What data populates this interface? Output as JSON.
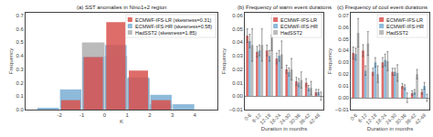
{
  "chart_data": [
    {
      "type": "histogram",
      "title": "(a) SST anomalies in Nino1+2 region",
      "xlabel": "K",
      "ylabel": "Frequency",
      "bins": [
        -3,
        -2,
        -1,
        0,
        1,
        2,
        3,
        4,
        5
      ],
      "series": [
        {
          "name": "ECMWF-IFS-LR (skewness=0.31)",
          "color": "#d9534f",
          "values": [
            0.0,
            0.07,
            0.39,
            0.65,
            0.29,
            0.07,
            0.0,
            0.0
          ]
        },
        {
          "name": "ECMWF-IFS-HR (skewness=0.58)",
          "color": "#7bafd4",
          "values": [
            0.01,
            0.15,
            0.39,
            0.48,
            0.24,
            0.11,
            0.04,
            0.0
          ]
        },
        {
          "name": "HadSST2 (skewness=1.85)",
          "color": "#b0b0b0",
          "values": [
            0.0,
            0.0,
            0.5,
            0.4,
            0.23,
            0.04,
            0.0,
            0.0
          ]
        }
      ],
      "xlim": [
        -3.5,
        5.0
      ],
      "xticks": [
        -2,
        -1,
        0,
        1,
        2,
        3,
        4
      ],
      "ylim": [
        0,
        0.72
      ],
      "yticks": [
        {
          "value": 0,
          "label": "0.0"
        },
        0.1,
        0.2,
        0.3,
        0.4,
        0.5,
        0.6,
        0.7
      ],
      "grid": false,
      "legend": "upper right"
    },
    {
      "type": "bar",
      "title": "(b) Frequency of warm event durations",
      "xlabel": "Duration in months",
      "ylabel": "Frequency",
      "categories": [
        "0-6",
        "6-12",
        "12-18",
        "18-24",
        "24-30",
        "30-36",
        "36-42",
        "42-48"
      ],
      "series": [
        {
          "name": "ECMWF-IFS-LR",
          "color": "#d9534f",
          "values": [
            0.045,
            0.033,
            0.034,
            0.028,
            0.02,
            0.011,
            0.01,
            0.003
          ],
          "errors": [
            0.005,
            0.004,
            0.004,
            0.004,
            0.003,
            0.003,
            0.003,
            0.002
          ]
        },
        {
          "name": "ECMWF-IFS-HR",
          "color": "#7bafd4",
          "values": [
            0.041,
            0.034,
            0.03,
            0.03,
            0.018,
            0.01,
            0.006,
            0.003
          ],
          "errors": [
            0.005,
            0.004,
            0.004,
            0.004,
            0.003,
            0.003,
            0.002,
            0.002
          ]
        },
        {
          "name": "HadSST2",
          "color": "#b0b0b0",
          "values": [
            0.038,
            0.038,
            0.046,
            0.031,
            0.02,
            0.012,
            0.006,
            0.0
          ],
          "errors": [
            0.012,
            0.012,
            0.012,
            0.01,
            0.008,
            0.006,
            0.005,
            0.003
          ]
        }
      ],
      "ylim": [
        -0.01,
        0.062
      ],
      "yticks": [
        {
          "value": -0.01,
          "label": "−0.01"
        },
        {
          "value": 0,
          "label": "0.00"
        },
        0.01,
        0.02,
        0.03,
        0.04,
        0.05,
        0.06
      ],
      "grid": false,
      "legend": "upper right"
    },
    {
      "type": "bar",
      "title": "(c) Frequency of cool event durations",
      "xlabel": "Duration in months",
      "ylabel": "Frequency",
      "categories": [
        "0-6",
        "6-12",
        "12-18",
        "18-24",
        "24-30",
        "30-36",
        "36-42",
        "42-48"
      ],
      "series": [
        {
          "name": "ECMWF-IFS-LR",
          "color": "#d9534f",
          "values": [
            0.038,
            0.04,
            0.022,
            0.03,
            0.022,
            0.01,
            0.004,
            0.005
          ],
          "errors": [
            0.005,
            0.005,
            0.003,
            0.004,
            0.003,
            0.002,
            0.002,
            0.002
          ]
        },
        {
          "name": "ECMWF-IFS-HR",
          "color": "#7bafd4",
          "values": [
            0.037,
            0.023,
            0.03,
            0.032,
            0.022,
            0.009,
            0.005,
            0.01
          ],
          "errors": [
            0.005,
            0.004,
            0.004,
            0.005,
            0.003,
            0.002,
            0.002,
            0.003
          ]
        },
        {
          "name": "HadSST2",
          "color": "#b0b0b0",
          "values": [
            0.055,
            0.046,
            0.02,
            0.031,
            0.021,
            0.0,
            0.02,
            0.0
          ],
          "errors": [
            0.012,
            0.01,
            0.007,
            0.008,
            0.007,
            0.004,
            0.004,
            0.003
          ]
        }
      ],
      "ylim": [
        -0.01,
        0.072
      ],
      "yticks": [
        {
          "value": -0.01,
          "label": "−0.01"
        },
        {
          "value": 0,
          "label": "0.00"
        },
        0.01,
        0.02,
        0.03,
        0.04,
        0.05,
        0.06,
        0.07
      ],
      "grid": false,
      "legend": "upper right"
    }
  ]
}
